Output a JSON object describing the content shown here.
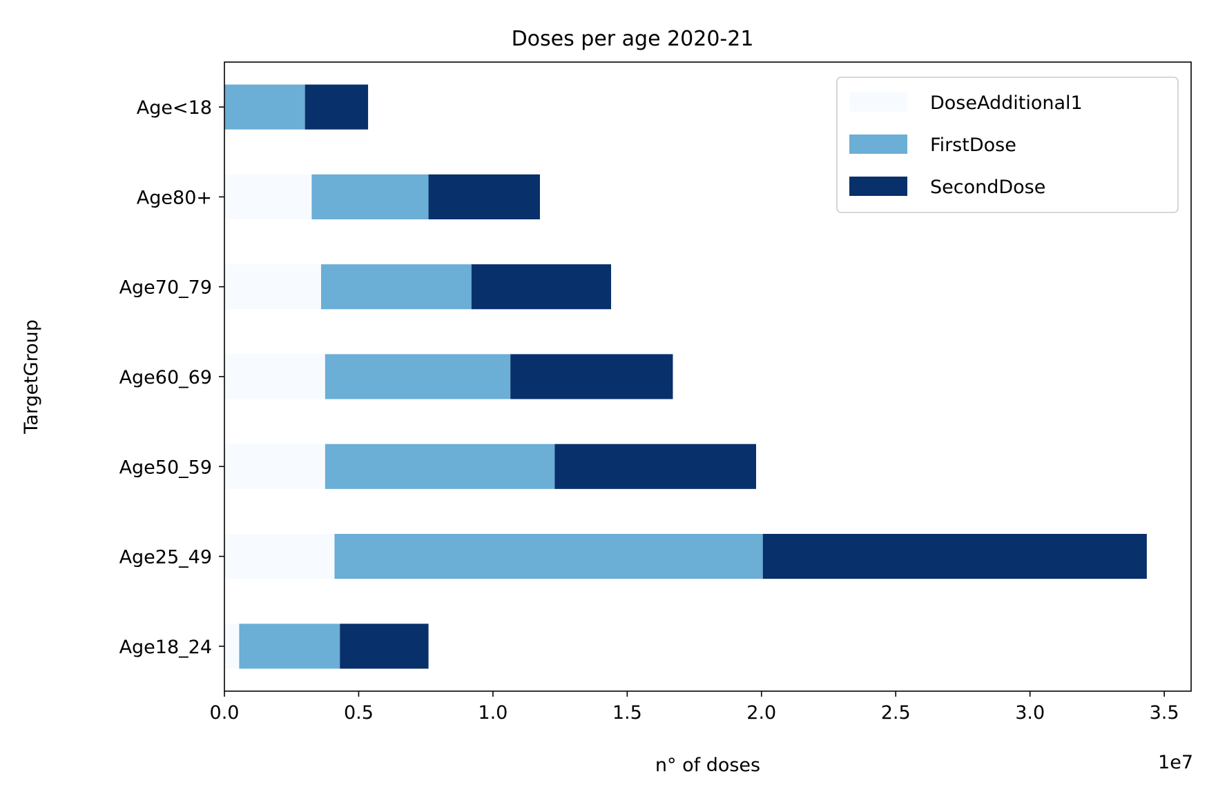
{
  "chart_data": {
    "type": "bar",
    "orientation": "horizontal",
    "stacked": true,
    "title": "Doses per age 2020-21",
    "xlabel": "n° of doses",
    "ylabel": "TargetGroup",
    "x_offset_label": "1e7",
    "xlim": [
      0,
      36000000
    ],
    "xticks": [
      0,
      5000000,
      10000000,
      15000000,
      20000000,
      25000000,
      30000000,
      35000000
    ],
    "xtick_labels": [
      "0.0",
      "0.5",
      "1.0",
      "1.5",
      "2.0",
      "2.5",
      "3.0",
      "3.5"
    ],
    "categories": [
      "Age18_24",
      "Age25_49",
      "Age50_59",
      "Age60_69",
      "Age70_79",
      "Age80+",
      "Age<18"
    ],
    "series": [
      {
        "name": "DoseAdditional1",
        "color": "#f7fbff",
        "values": [
          550000,
          4100000,
          3750000,
          3750000,
          3600000,
          3250000,
          0
        ]
      },
      {
        "name": "FirstDose",
        "color": "#6baed6",
        "values": [
          3750000,
          15950000,
          8550000,
          6900000,
          5600000,
          4350000,
          3000000
        ]
      },
      {
        "name": "SecondDose",
        "color": "#08306b",
        "values": [
          3300000,
          14300000,
          7500000,
          6050000,
          5200000,
          4150000,
          2350000
        ]
      }
    ],
    "grid": false,
    "legend_position": "top-right"
  }
}
